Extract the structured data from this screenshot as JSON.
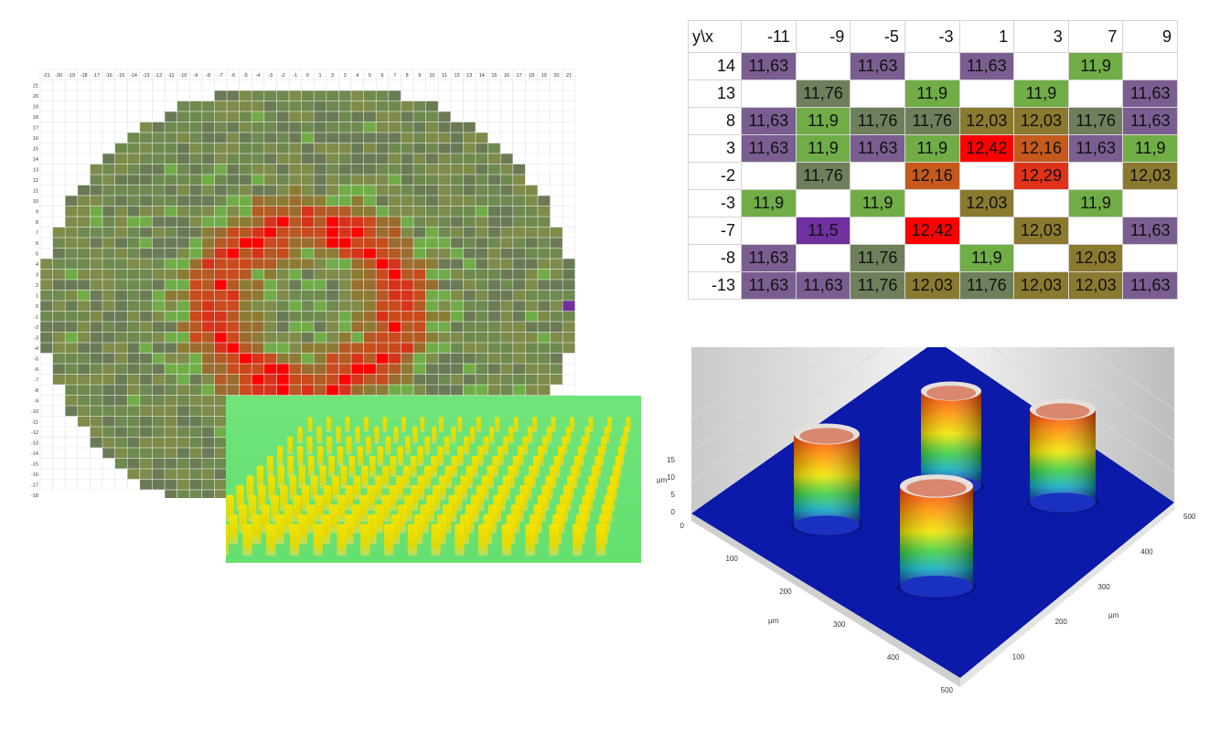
{
  "heatmap": {
    "corner_label": "y\\x",
    "x_ticks": [
      "-21",
      "-20",
      "-19",
      "-18",
      "-17",
      "-16",
      "-15",
      "-14",
      "-13",
      "-12",
      "-11",
      "-10",
      "-9",
      "-8",
      "-7",
      "-6",
      "-5",
      "-4",
      "-3",
      "-2",
      "-1",
      "0",
      "1",
      "2",
      "3",
      "4",
      "5",
      "6",
      "7",
      "8",
      "9",
      "10",
      "11",
      "12",
      "13",
      "14",
      "15",
      "16",
      "17",
      "18",
      "19",
      "20",
      "21"
    ],
    "y_ticks": [
      "21",
      "20",
      "19",
      "18",
      "17",
      "16",
      "15",
      "14",
      "13",
      "12",
      "11",
      "10",
      "9",
      "8",
      "7",
      "6",
      "5",
      "4",
      "3",
      "2",
      "1",
      "0",
      "-1",
      "-2",
      "-3",
      "-4",
      "-5",
      "-6",
      "-7",
      "-8",
      "-9",
      "-10",
      "-11",
      "-12",
      "-13",
      "-14",
      "-15",
      "-16",
      "-17",
      "-18"
    ],
    "colors": {
      "low": "#7030a0",
      "mid_low": "#6f7f52",
      "green": "#70ad47",
      "mid_high": "#8a7a30",
      "orange": "#c55a11",
      "high": "#ff0000"
    }
  },
  "chart_data": [
    {
      "type": "table",
      "corner_label": "y\\x",
      "columns": [
        "-11",
        "-9",
        "-5",
        "-3",
        "1",
        "3",
        "7",
        "9"
      ],
      "rows": [
        {
          "y": "14",
          "cells": [
            "11,63",
            "",
            "11,63",
            "",
            "11,63",
            "",
            "11,9",
            ""
          ]
        },
        {
          "y": "13",
          "cells": [
            "",
            "11,76",
            "",
            "11,9",
            "",
            "11,9",
            "",
            "11,63"
          ]
        },
        {
          "y": "8",
          "cells": [
            "11,63",
            "11,9",
            "11,76",
            "11,76",
            "12,03",
            "12,03",
            "11,76",
            "11,63"
          ]
        },
        {
          "y": "3",
          "cells": [
            "11,63",
            "11,9",
            "11,63",
            "11,9",
            "12,42",
            "12,16",
            "11,63",
            "11,9"
          ]
        },
        {
          "y": "-2",
          "cells": [
            "",
            "11,76",
            "",
            "12,16",
            "",
            "12,29",
            "",
            "12,03"
          ]
        },
        {
          "y": "-3",
          "cells": [
            "11,9",
            "",
            "11,9",
            "",
            "12,03",
            "",
            "11,9",
            ""
          ]
        },
        {
          "y": "-7",
          "cells": [
            "",
            "11,5",
            "",
            "12,42",
            "",
            "12,03",
            "",
            "11,63"
          ]
        },
        {
          "y": "-8",
          "cells": [
            "11,63",
            "",
            "11,76",
            "",
            "11,9",
            "",
            "12,03",
            ""
          ]
        },
        {
          "y": "-13",
          "cells": [
            "11,63",
            "11,63",
            "11,76",
            "12,03",
            "11,76",
            "12,03",
            "12,03",
            "11,63"
          ]
        }
      ],
      "cell_colors": {
        "11,5": "#7030a0",
        "11,63": "#7b5e91",
        "11,76": "#6f7f5c",
        "11,9": "#70ad47",
        "12,03": "#8a7a30",
        "12,16": "#c55a1c",
        "12,29": "#e0321a",
        "12,42": "#ff0000"
      }
    },
    {
      "type": "surface",
      "x_ticks": [
        "0",
        "100",
        "200",
        "300",
        "400",
        "500"
      ],
      "y_ticks": [
        "100",
        "200",
        "300",
        "400",
        "500"
      ],
      "z_ticks": [
        "0",
        "5",
        "10",
        "15"
      ],
      "xlabel": "µm",
      "ylabel": "µm",
      "zlabel": "µm",
      "colors": {
        "base": "#0b1aa8",
        "pillar_top": "#d9876e"
      }
    }
  ]
}
